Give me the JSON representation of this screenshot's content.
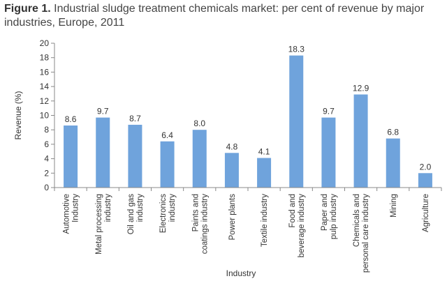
{
  "figure": {
    "label": "Figure 1.",
    "caption": "Industrial sludge treatment chemicals market: per cent of revenue by major industries, Europe, 2011"
  },
  "chart_data": {
    "type": "bar",
    "categories": [
      [
        "Automotive",
        "Industry"
      ],
      [
        "Metal processing",
        "industry"
      ],
      [
        "Oil and gas",
        "industry"
      ],
      [
        "Electronics",
        "industry"
      ],
      [
        "Paints and",
        "coatings industry"
      ],
      [
        "Power plants"
      ],
      [
        "Textile industry"
      ],
      [
        "Food and",
        "beverage industry"
      ],
      [
        "Paper and",
        "pulp industry"
      ],
      [
        "Chemicals and",
        "personal care industry"
      ],
      [
        "Mining"
      ],
      [
        "Agriculture"
      ]
    ],
    "values": [
      8.6,
      9.7,
      8.7,
      6.4,
      8.0,
      4.8,
      4.1,
      18.3,
      9.7,
      12.9,
      6.8,
      2.0
    ],
    "value_labels": [
      "8.6",
      "9.7",
      "8.7",
      "6.4",
      "8.0",
      "4.8",
      "4.1",
      "18.3",
      "9.7",
      "12.9",
      "6.8",
      "2.0"
    ],
    "yticks": [
      "0",
      "2",
      "4",
      "6",
      "8",
      "10",
      "12",
      "14",
      "16",
      "18",
      "20"
    ],
    "xlabel": "Industry",
    "ylabel": "Revenue (%)",
    "ylim": [
      0,
      20
    ],
    "bar_color": "#6fa3dc",
    "axis_color": "#888888",
    "grid": false
  }
}
